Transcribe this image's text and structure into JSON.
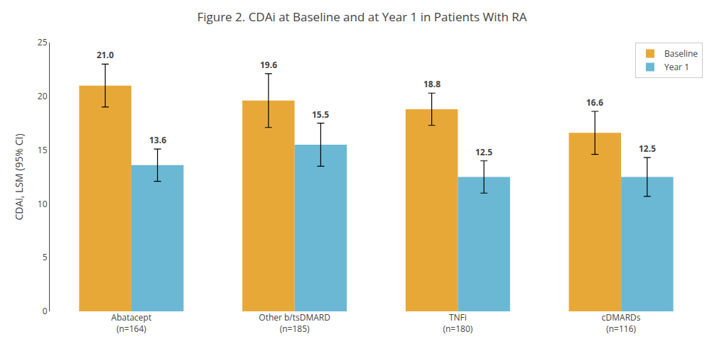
{
  "chart_data": {
    "type": "bar",
    "title": "Figure 2. CDAi at Baseline and at Year 1 in Patients With RA",
    "ylabel": "CDAi, LSM (95% CI)",
    "categories": [
      "Abatacept\n(n=164)",
      "Other b/tsDMARD\n(n=185)",
      "TNFi\n(n=180)",
      "cDMARDs\n(n=116)"
    ],
    "series": [
      {
        "name": "Baseline",
        "color": "#E8A838",
        "values": [
          21.0,
          19.6,
          18.8,
          16.6
        ],
        "value_labels": [
          "21.0",
          "19.6",
          "18.8",
          "16.6"
        ],
        "error_upper": [
          2.0,
          2.5,
          1.5,
          2.0
        ],
        "error_lower": [
          2.0,
          2.5,
          1.5,
          2.0
        ]
      },
      {
        "name": "Year 1",
        "color": "#6BB8D4",
        "values": [
          13.6,
          15.5,
          12.5,
          12.5
        ],
        "value_labels": [
          "13.6",
          "15.5",
          "12.5",
          "12.5"
        ],
        "error_upper": [
          1.5,
          2.0,
          1.5,
          1.8
        ],
        "error_lower": [
          1.5,
          2.0,
          1.5,
          1.8
        ]
      }
    ],
    "ylim": [
      0,
      25
    ],
    "yticks": [
      0,
      5,
      10,
      15,
      20,
      25
    ],
    "grid": false,
    "legend": "upper right",
    "data_labels": true
  }
}
